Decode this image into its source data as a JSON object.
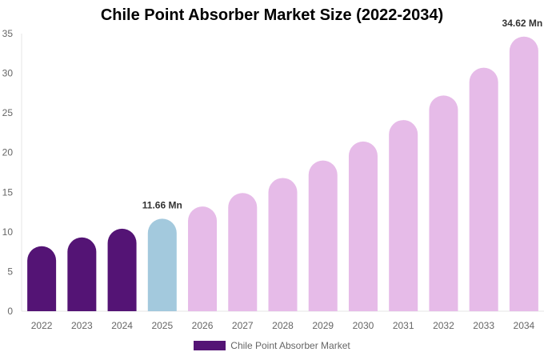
{
  "chart_data": {
    "type": "bar",
    "title": "Chile Point Absorber Market Size (2022-2034)",
    "categories": [
      "2022",
      "2023",
      "2024",
      "2025",
      "2026",
      "2027",
      "2028",
      "2029",
      "2030",
      "2031",
      "2032",
      "2033",
      "2034"
    ],
    "series": [
      {
        "name": "Chile Point Absorber Market",
        "values": [
          8.2,
          9.3,
          10.4,
          11.66,
          13.2,
          14.9,
          16.8,
          19.0,
          21.4,
          24.1,
          27.2,
          30.7,
          34.62
        ]
      }
    ],
    "bar_colors": [
      "#541475",
      "#541475",
      "#541475",
      "#a3c9dd",
      "#e6bbe8",
      "#e6bbe8",
      "#e6bbe8",
      "#e6bbe8",
      "#e6bbe8",
      "#e6bbe8",
      "#e6bbe8",
      "#e6bbe8",
      "#e6bbe8"
    ],
    "data_labels": {
      "3": "11.66 Mn",
      "12": "34.62 Mn"
    },
    "yticks": [
      0,
      5,
      10,
      15,
      20,
      25,
      30,
      35
    ],
    "ylim": [
      0,
      35
    ],
    "xlabel": "",
    "ylabel": "",
    "grid": false,
    "legend_position": "bottom",
    "legend_color": "#541475"
  }
}
